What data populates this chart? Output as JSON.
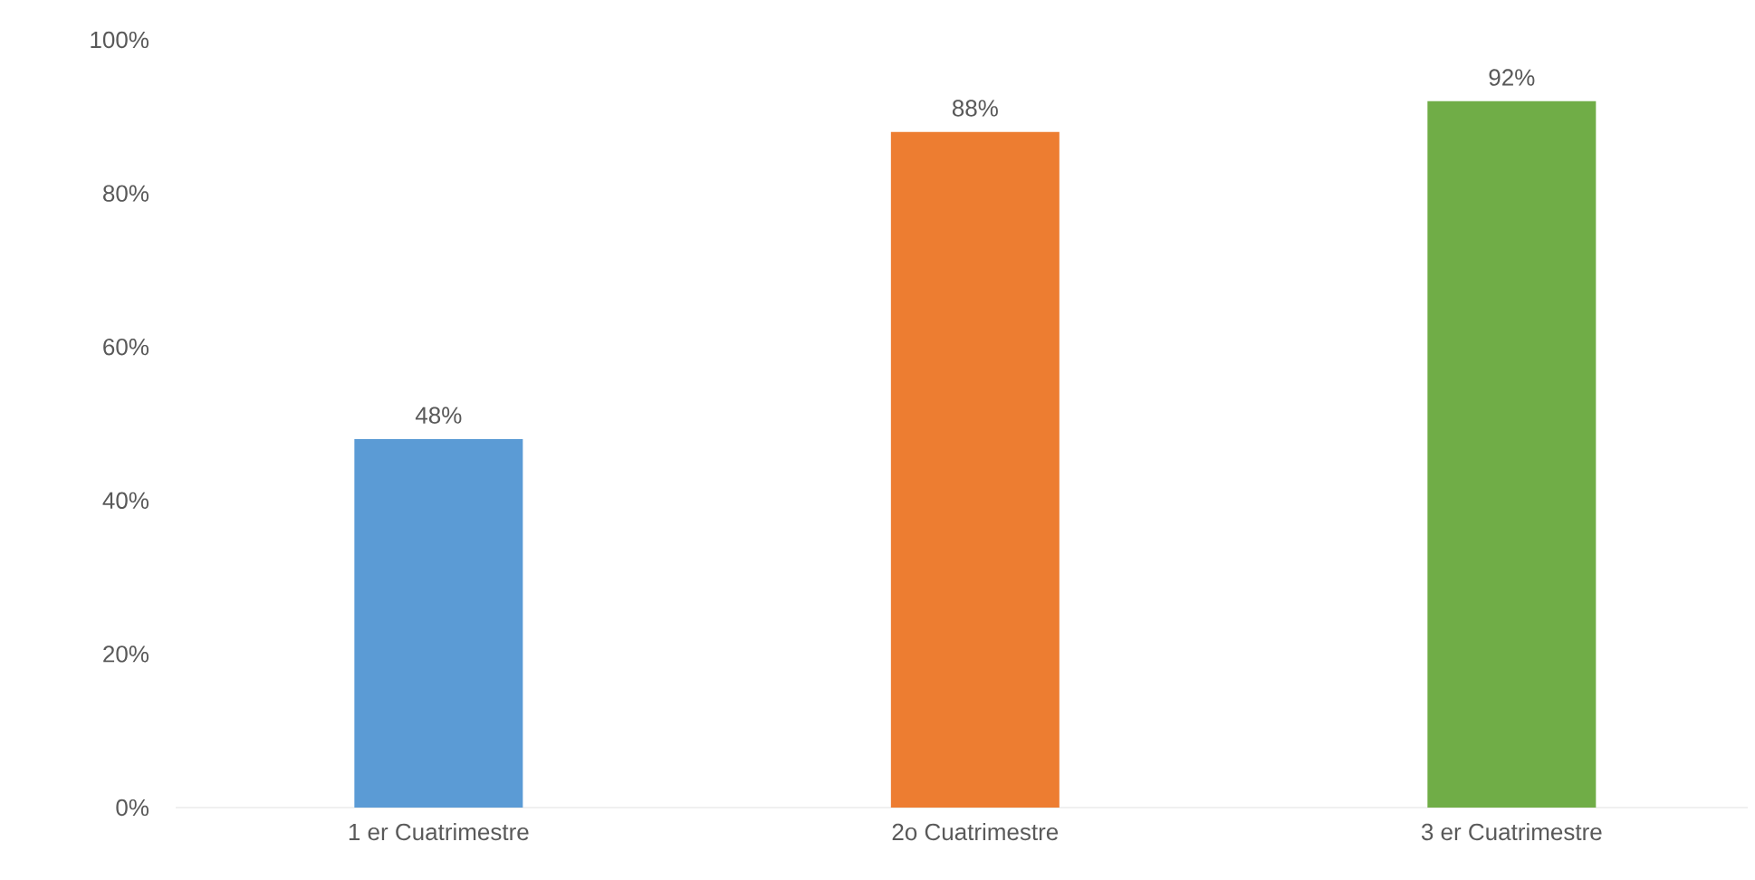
{
  "chart_data": {
    "type": "bar",
    "categories": [
      "1 er Cuatrimestre",
      "2o Cuatrimestre",
      "3 er Cuatrimestre"
    ],
    "values": [
      48,
      88,
      92
    ],
    "colors": [
      "#5b9bd5",
      "#ed7d31",
      "#70ad47"
    ],
    "value_labels": [
      "48%",
      "88%",
      "92%"
    ],
    "ylim": [
      0,
      100
    ],
    "yticks": [
      {
        "value": 0,
        "label": "0%"
      },
      {
        "value": 20,
        "label": "20%"
      },
      {
        "value": 40,
        "label": "40%"
      },
      {
        "value": 60,
        "label": "60%"
      },
      {
        "value": 80,
        "label": "80%"
      },
      {
        "value": 100,
        "label": "100%"
      }
    ]
  }
}
